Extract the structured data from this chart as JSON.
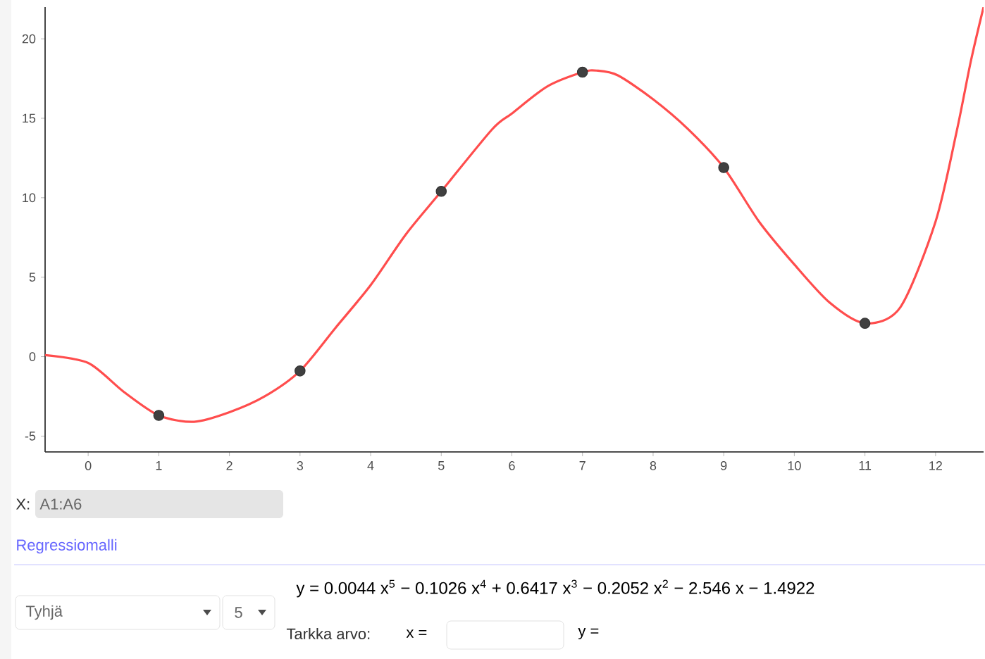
{
  "chart_data": {
    "type": "scatter",
    "xlim": [
      -0.61,
      12.68
    ],
    "ylim": [
      -6,
      22
    ],
    "xticks": [
      0,
      1,
      2,
      3,
      4,
      5,
      6,
      7,
      8,
      9,
      10,
      11,
      12
    ],
    "yticks": [
      -5,
      0,
      5,
      10,
      15,
      20
    ],
    "series": [
      {
        "type": "line",
        "color": "#ff4d4d",
        "marker": "none",
        "x": [
          -0.61,
          0,
          0.5,
          1,
          1.5,
          2,
          2.5,
          3,
          3.5,
          4,
          4.5,
          5,
          5.72,
          6,
          6.5,
          7,
          7.2,
          7.5,
          8,
          8.5,
          9,
          9.5,
          10,
          10.5,
          11,
          11.5,
          12,
          12.3,
          12.5,
          12.68
        ],
        "values": [
          0.1,
          -0.4,
          -2.2,
          -3.7,
          -4.1,
          -3.5,
          -2.5,
          -0.9,
          1.8,
          4.5,
          7.7,
          10.4,
          14.3,
          15.3,
          17.0,
          17.9,
          18.0,
          17.7,
          16.2,
          14.3,
          11.9,
          8.5,
          5.8,
          3.4,
          2.1,
          3.1,
          8.5,
          14.2,
          18.6,
          22
        ]
      },
      {
        "color": "#404040",
        "marker": "circle",
        "x": [
          1,
          3,
          5,
          7,
          9,
          11
        ],
        "values": [
          -3.7,
          -0.9,
          10.4,
          17.9,
          11.9,
          2.1
        ]
      }
    ],
    "annotations": [
      "X:",
      "A1:A6",
      "Regressiomalli",
      "Tyhjä",
      "5",
      "y = 0.0044 x$^{5}$ − 0.1026 x$^{4}$ + 0.6417 x$^{3}$ − 0.2052 x$^{2}$ − 2.546 x − 1.4922",
      "Tarkka arvo:",
      "x =",
      "y ="
    ]
  }
}
